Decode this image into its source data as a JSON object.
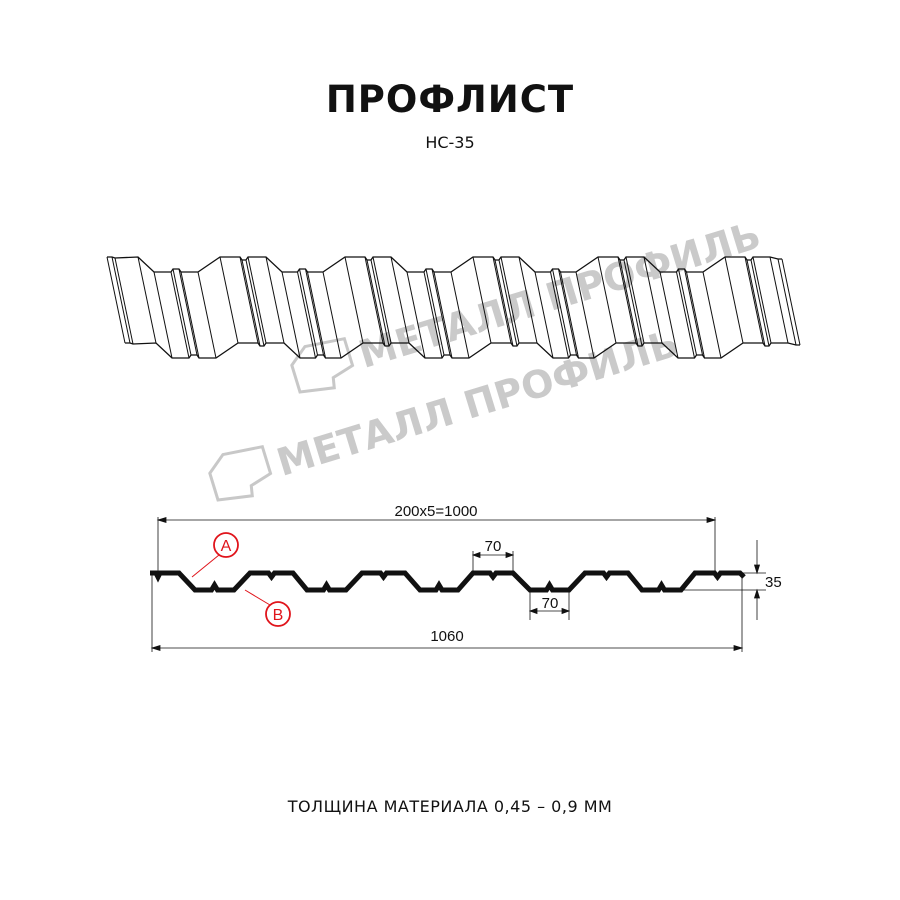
{
  "title": "ПРОФЛИСТ",
  "subtitle": "НС-35",
  "footer": "ТОЛЩИНА МАТЕРИАЛА 0,45 – 0,9 ММ",
  "watermark": "МЕТАЛЛ ПРОФИЛЬ",
  "dimensions": {
    "pitch_total": "200x5=1000",
    "full_width": "1060",
    "ridge_width": "70",
    "valley_width": "70",
    "height": "35"
  },
  "markers": {
    "a": "A",
    "b": "B"
  },
  "colors": {
    "line": "#111111",
    "marker": "#e0141b",
    "watermark": "#bdbdbd"
  }
}
